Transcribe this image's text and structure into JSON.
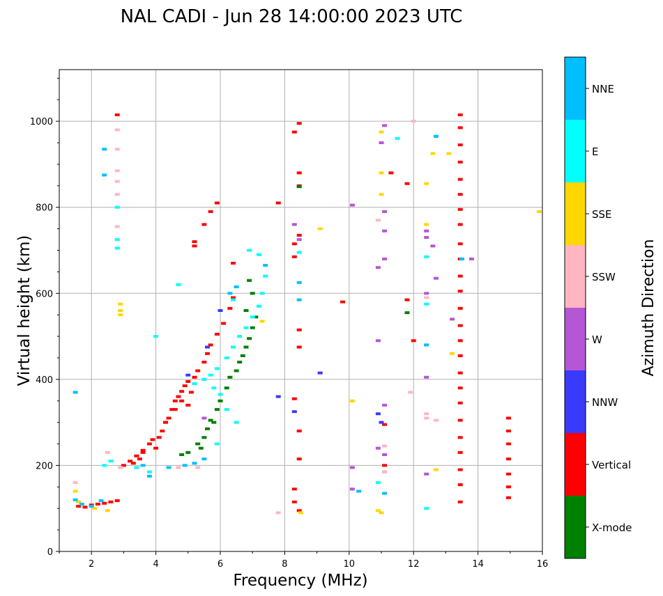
{
  "chart_data": {
    "type": "scatter",
    "title": "NAL CADI - Jun 28 14:00:00 2023 UTC",
    "xlabel": "Frequency (MHz)",
    "ylabel": "Virtual height (km)",
    "xlim": [
      1,
      16
    ],
    "ylim": [
      0,
      1120
    ],
    "xticks": [
      2,
      4,
      6,
      8,
      10,
      12,
      14,
      16
    ],
    "yticks": [
      0,
      200,
      400,
      600,
      800,
      1000
    ],
    "grid": true,
    "colorbar": {
      "label": "Azimuth Direction",
      "categories": [
        {
          "name": "X-mode",
          "color": "#008000"
        },
        {
          "name": "Vertical",
          "color": "#ff0000"
        },
        {
          "name": "NNW",
          "color": "#3a3aff"
        },
        {
          "name": "W",
          "color": "#b556d6"
        },
        {
          "name": "SSW",
          "color": "#ffb6c1"
        },
        {
          "name": "SSE",
          "color": "#ffd700"
        },
        {
          "name": "E",
          "color": "#00ffff"
        },
        {
          "name": "NNE",
          "color": "#00bfff"
        }
      ]
    },
    "series": [
      {
        "name": "Vertical",
        "points": [
          [
            1.6,
            105
          ],
          [
            1.8,
            103
          ],
          [
            2.0,
            108
          ],
          [
            2.2,
            110
          ],
          [
            2.4,
            112
          ],
          [
            2.6,
            115
          ],
          [
            2.8,
            118
          ],
          [
            3.0,
            200
          ],
          [
            3.2,
            210
          ],
          [
            3.4,
            222
          ],
          [
            3.5,
            215
          ],
          [
            3.6,
            235
          ],
          [
            3.8,
            250
          ],
          [
            4.0,
            240
          ],
          [
            4.1,
            265
          ],
          [
            4.2,
            280
          ],
          [
            4.3,
            300
          ],
          [
            4.4,
            310
          ],
          [
            4.5,
            330
          ],
          [
            4.6,
            350
          ],
          [
            4.7,
            360
          ],
          [
            4.8,
            372
          ],
          [
            4.9,
            385
          ],
          [
            5.0,
            395
          ],
          [
            5.2,
            405
          ],
          [
            5.3,
            420
          ],
          [
            5.5,
            440
          ],
          [
            5.6,
            460
          ],
          [
            5.7,
            480
          ],
          [
            5.9,
            505
          ],
          [
            6.1,
            530
          ],
          [
            6.3,
            565
          ],
          [
            6.4,
            590
          ],
          [
            6.4,
            670
          ],
          [
            5.2,
            710
          ],
          [
            5.2,
            720
          ],
          [
            5.5,
            760
          ],
          [
            5.7,
            790
          ],
          [
            5.9,
            810
          ],
          [
            4.3,
            300
          ],
          [
            4.6,
            330
          ],
          [
            4.8,
            350
          ],
          [
            5.0,
            340
          ],
          [
            5.1,
            370
          ],
          [
            3.3,
            205
          ],
          [
            3.6,
            230
          ],
          [
            3.9,
            260
          ],
          [
            2.8,
            1015
          ],
          [
            8.45,
            995
          ],
          [
            8.3,
            975
          ],
          [
            8.45,
            880
          ],
          [
            8.45,
            850
          ],
          [
            8.45,
            735
          ],
          [
            8.3,
            715
          ],
          [
            8.3,
            685
          ],
          [
            8.45,
            515
          ],
          [
            8.45,
            475
          ],
          [
            8.3,
            355
          ],
          [
            8.45,
            280
          ],
          [
            8.45,
            215
          ],
          [
            8.3,
            145
          ],
          [
            8.3,
            115
          ],
          [
            8.45,
            95
          ],
          [
            9.8,
            580
          ],
          [
            11.3,
            880
          ],
          [
            11.8,
            855
          ],
          [
            11.8,
            585
          ],
          [
            12.0,
            490
          ],
          [
            11.1,
            295
          ],
          [
            11.1,
            200
          ],
          [
            7.8,
            810
          ],
          [
            13.45,
            1015
          ],
          [
            13.45,
            985
          ],
          [
            13.45,
            945
          ],
          [
            13.45,
            905
          ],
          [
            13.45,
            865
          ],
          [
            13.45,
            830
          ],
          [
            13.45,
            795
          ],
          [
            13.45,
            760
          ],
          [
            13.45,
            715
          ],
          [
            13.45,
            680
          ],
          [
            13.45,
            640
          ],
          [
            13.45,
            605
          ],
          [
            13.45,
            565
          ],
          [
            13.45,
            525
          ],
          [
            13.45,
            490
          ],
          [
            13.45,
            455
          ],
          [
            13.45,
            415
          ],
          [
            13.45,
            380
          ],
          [
            13.45,
            345
          ],
          [
            13.45,
            305
          ],
          [
            13.45,
            265
          ],
          [
            13.45,
            230
          ],
          [
            13.45,
            190
          ],
          [
            13.45,
            155
          ],
          [
            13.45,
            115
          ],
          [
            14.95,
            310
          ],
          [
            14.95,
            280
          ],
          [
            14.95,
            250
          ],
          [
            14.95,
            215
          ],
          [
            14.95,
            180
          ],
          [
            14.95,
            150
          ],
          [
            14.95,
            125
          ]
        ]
      },
      {
        "name": "X-mode",
        "points": [
          [
            5.5,
            265
          ],
          [
            5.6,
            285
          ],
          [
            5.7,
            305
          ],
          [
            5.9,
            330
          ],
          [
            6.0,
            350
          ],
          [
            6.2,
            380
          ],
          [
            6.3,
            405
          ],
          [
            6.5,
            420
          ],
          [
            6.6,
            440
          ],
          [
            6.7,
            455
          ],
          [
            6.8,
            475
          ],
          [
            6.9,
            495
          ],
          [
            7.0,
            520
          ],
          [
            7.1,
            545
          ],
          [
            6.8,
            560
          ],
          [
            7.0,
            600
          ],
          [
            6.9,
            630
          ],
          [
            5.3,
            250
          ],
          [
            5.4,
            240
          ],
          [
            5.8,
            300
          ],
          [
            4.8,
            225
          ],
          [
            5.0,
            230
          ],
          [
            11.8,
            555
          ],
          [
            8.45,
            848
          ]
        ]
      },
      {
        "name": "NNW",
        "points": [
          [
            5.0,
            410
          ],
          [
            5.6,
            475
          ],
          [
            6.0,
            560
          ],
          [
            9.1,
            415
          ],
          [
            8.3,
            325
          ],
          [
            7.8,
            360
          ],
          [
            10.9,
            320
          ],
          [
            11.0,
            300
          ]
        ]
      },
      {
        "name": "W",
        "points": [
          [
            8.3,
            760
          ],
          [
            8.45,
            725
          ],
          [
            10.1,
            805
          ],
          [
            11.1,
            990
          ],
          [
            11.0,
            950
          ],
          [
            11.1,
            790
          ],
          [
            11.1,
            745
          ],
          [
            11.1,
            680
          ],
          [
            10.9,
            660
          ],
          [
            10.9,
            490
          ],
          [
            11.1,
            340
          ],
          [
            10.9,
            240
          ],
          [
            11.1,
            225
          ],
          [
            11.1,
            185
          ],
          [
            10.1,
            145
          ],
          [
            10.1,
            195
          ],
          [
            12.4,
            745
          ],
          [
            12.4,
            730
          ],
          [
            12.6,
            710
          ],
          [
            12.7,
            635
          ],
          [
            12.4,
            600
          ],
          [
            12.4,
            405
          ],
          [
            13.2,
            540
          ],
          [
            13.8,
            680
          ],
          [
            12.4,
            180
          ],
          [
            5.5,
            310
          ]
        ]
      },
      {
        "name": "SSW",
        "points": [
          [
            2.8,
            980
          ],
          [
            2.8,
            935
          ],
          [
            2.8,
            885
          ],
          [
            2.8,
            860
          ],
          [
            2.8,
            830
          ],
          [
            2.8,
            755
          ],
          [
            1.5,
            160
          ],
          [
            2.5,
            230
          ],
          [
            2.9,
            195
          ],
          [
            4.7,
            195
          ],
          [
            5.3,
            195
          ],
          [
            10.9,
            770
          ],
          [
            11.1,
            245
          ],
          [
            11.1,
            185
          ],
          [
            12.4,
            590
          ],
          [
            12.4,
            320
          ],
          [
            12.4,
            310
          ],
          [
            12.7,
            305
          ],
          [
            12.7,
            190
          ],
          [
            7.8,
            90
          ],
          [
            11.9,
            370
          ],
          [
            12.0,
            1000
          ]
        ]
      },
      {
        "name": "SSE",
        "points": [
          [
            2.9,
            575
          ],
          [
            2.9,
            560
          ],
          [
            2.9,
            550
          ],
          [
            1.5,
            140
          ],
          [
            1.6,
            115
          ],
          [
            2.1,
            100
          ],
          [
            2.5,
            95
          ],
          [
            8.5,
            90
          ],
          [
            9.1,
            750
          ],
          [
            10.1,
            350
          ],
          [
            10.9,
            95
          ],
          [
            11.0,
            90
          ],
          [
            11.0,
            880
          ],
          [
            11.0,
            830
          ],
          [
            11.0,
            975
          ],
          [
            12.6,
            925
          ],
          [
            13.1,
            925
          ],
          [
            12.4,
            760
          ],
          [
            12.4,
            855
          ],
          [
            13.2,
            460
          ],
          [
            12.7,
            190
          ],
          [
            7.3,
            535
          ],
          [
            15.9,
            790
          ]
        ]
      },
      {
        "name": "E",
        "points": [
          [
            2.8,
            800
          ],
          [
            2.8,
            725
          ],
          [
            2.8,
            705
          ],
          [
            4.0,
            500
          ],
          [
            4.7,
            620
          ],
          [
            2.4,
            200
          ],
          [
            2.6,
            210
          ],
          [
            3.4,
            195
          ],
          [
            3.8,
            185
          ],
          [
            5.2,
            390
          ],
          [
            5.5,
            400
          ],
          [
            5.7,
            410
          ],
          [
            5.9,
            425
          ],
          [
            6.2,
            450
          ],
          [
            6.4,
            475
          ],
          [
            6.6,
            500
          ],
          [
            6.8,
            520
          ],
          [
            7.0,
            545
          ],
          [
            7.2,
            570
          ],
          [
            7.3,
            600
          ],
          [
            7.4,
            640
          ],
          [
            6.9,
            700
          ],
          [
            7.2,
            690
          ],
          [
            6.4,
            585
          ],
          [
            5.8,
            380
          ],
          [
            6.0,
            365
          ],
          [
            6.2,
            330
          ],
          [
            6.5,
            300
          ],
          [
            5.9,
            250
          ],
          [
            8.45,
            695
          ],
          [
            10.9,
            160
          ],
          [
            12.4,
            685
          ],
          [
            12.4,
            575
          ],
          [
            12.4,
            480
          ],
          [
            12.4,
            100
          ],
          [
            11.5,
            960
          ],
          [
            12.7,
            965
          ]
        ]
      },
      {
        "name": "NNE",
        "points": [
          [
            1.5,
            120
          ],
          [
            1.7,
            110
          ],
          [
            2.0,
            105
          ],
          [
            2.3,
            118
          ],
          [
            2.4,
            935
          ],
          [
            2.4,
            875
          ],
          [
            1.5,
            370
          ],
          [
            3.6,
            200
          ],
          [
            3.8,
            175
          ],
          [
            4.4,
            195
          ],
          [
            4.9,
            200
          ],
          [
            5.2,
            205
          ],
          [
            5.5,
            215
          ],
          [
            6.3,
            600
          ],
          [
            6.5,
            615
          ],
          [
            7.4,
            665
          ],
          [
            8.45,
            625
          ],
          [
            8.45,
            585
          ],
          [
            10.3,
            140
          ],
          [
            11.1,
            135
          ],
          [
            12.4,
            480
          ],
          [
            12.7,
            965
          ],
          [
            13.5,
            680
          ]
        ]
      }
    ]
  }
}
